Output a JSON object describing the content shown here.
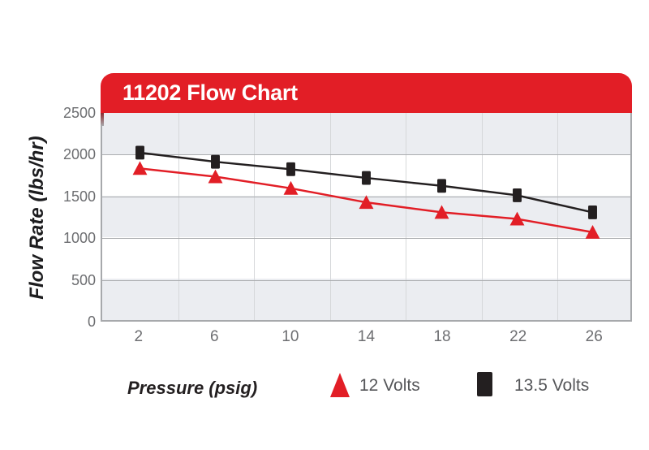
{
  "chart": {
    "title": "11202 Flow Chart",
    "y_axis_title": "Flow Rate (lbs/hr)",
    "x_axis_title": "Pressure (psig)"
  },
  "chart_data": {
    "type": "line",
    "title": "11202 Flow Chart",
    "xlabel": "Pressure (psig)",
    "ylabel": "Flow Rate (lbs/hr)",
    "x": [
      2,
      6,
      10,
      14,
      18,
      22,
      26
    ],
    "series": [
      {
        "name": "12 Volts",
        "color": "#e21e26",
        "marker": "triangle",
        "values": [
          1830,
          1730,
          1590,
          1420,
          1300,
          1220,
          1060
        ]
      },
      {
        "name": "13.5 Volts",
        "color": "#231f20",
        "marker": "square",
        "values": [
          2020,
          1910,
          1820,
          1715,
          1620,
          1505,
          1300
        ]
      }
    ],
    "ylim": [
      0,
      2500
    ],
    "y_ticks": [
      0,
      500,
      1000,
      1500,
      2000,
      2500
    ],
    "grid": "horizontal-bands-with-category-dividers",
    "legend_position": "bottom"
  },
  "legend": {
    "items": [
      {
        "label": "12 Volts",
        "color": "#e21e26"
      },
      {
        "label": "13.5 Volts",
        "color": "#231f20"
      }
    ]
  },
  "colors": {
    "banner_red": "#e21e26",
    "band_gray": "#ebedf1",
    "gridline_h": "#abadb0",
    "gridline_v": "#d6d8da",
    "plot_border": "#a7a9ac",
    "tick_text": "#6d6e71",
    "legend_text": "#555659",
    "series_black": "#231f20"
  }
}
